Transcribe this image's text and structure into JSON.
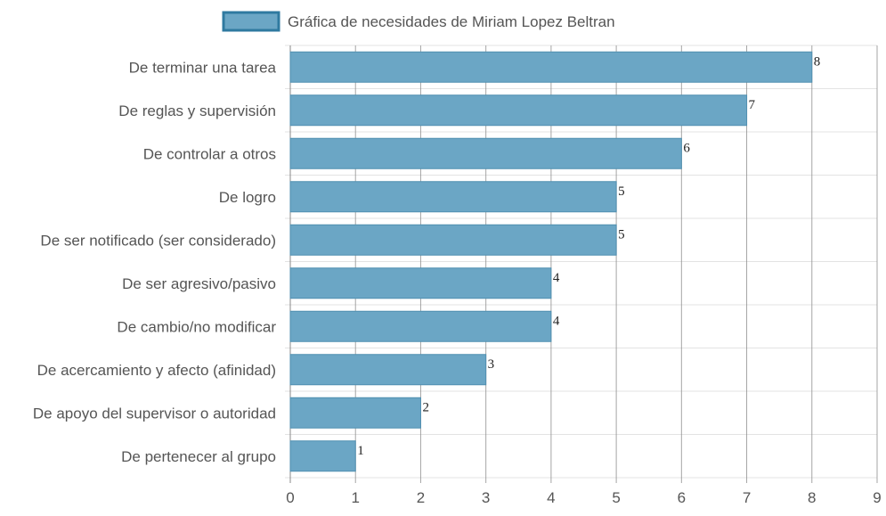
{
  "chart_data": {
    "type": "bar",
    "orientation": "horizontal",
    "categories": [
      "De terminar una tarea",
      "De reglas y supervisión",
      "De controlar a otros",
      "De logro",
      "De ser notificado (ser considerado)",
      "De ser agresivo/pasivo",
      "De cambio/no modificar",
      "De acercamiento y afecto (afinidad)",
      "De apoyo del supervisor o autoridad",
      "De pertenecer al grupo"
    ],
    "series": [
      {
        "name": "Gráfica de necesidades de Miriam Lopez Beltran",
        "values": [
          8,
          7,
          6,
          5,
          5,
          4,
          4,
          3,
          2,
          1
        ]
      }
    ],
    "xlim": [
      0,
      9
    ],
    "x_ticks": [
      "0",
      "1",
      "2",
      "3",
      "4",
      "5",
      "6",
      "7",
      "8",
      "9"
    ],
    "grid": true,
    "legend_position": "top",
    "data_labels": true,
    "colors": {
      "bar_fill": "#6ba6c5",
      "bar_stroke": "#4f8fb0",
      "legend_fill": "#6ba6c5",
      "legend_stroke": "#2f7aa0",
      "grid": "#e3e3e3",
      "axis": "#888888"
    }
  }
}
